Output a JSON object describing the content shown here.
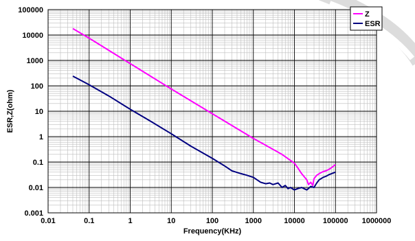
{
  "chart_data": {
    "type": "line",
    "title": "",
    "xlabel": "Frequency(KHz)",
    "ylabel": "ESR,Z(ohm)",
    "x_scale": "log",
    "y_scale": "log",
    "xlim": [
      0.01,
      1000000
    ],
    "ylim": [
      0.001,
      100000
    ],
    "grid": true,
    "legend_position": "top-right",
    "x_tick_labels": [
      "0.01",
      "0.1",
      "1",
      "10",
      "100",
      "1000",
      "10000",
      "100000",
      "1000000"
    ],
    "y_tick_labels": [
      "0.001",
      "0.01",
      "0.1",
      "1",
      "10",
      "100",
      "1000",
      "10000",
      "100000"
    ],
    "series": [
      {
        "name": "Z",
        "color": "#ff00ff",
        "x": [
          0.04,
          0.1,
          1,
          10,
          100,
          1000,
          5000,
          10000,
          12000,
          15000,
          20000,
          22000,
          25000,
          28000,
          30000,
          35000,
          40000,
          50000,
          60000,
          70000,
          80000,
          100000
        ],
        "y": [
          18000,
          7500,
          750,
          75,
          8,
          0.85,
          0.2,
          0.09,
          0.06,
          0.035,
          0.02,
          0.013,
          0.016,
          0.012,
          0.022,
          0.03,
          0.035,
          0.042,
          0.046,
          0.052,
          0.06,
          0.08
        ]
      },
      {
        "name": "ESR",
        "color": "#000080",
        "x": [
          0.04,
          0.1,
          0.3,
          1,
          3,
          10,
          30,
          100,
          200,
          300,
          500,
          700,
          1000,
          1500,
          2000,
          2500,
          3000,
          4000,
          5000,
          6000,
          7000,
          8000,
          10000,
          12000,
          15000,
          20000,
          25000,
          30000,
          35000,
          40000,
          50000,
          60000,
          70000,
          80000,
          100000
        ],
        "y": [
          240,
          110,
          40,
          12,
          4.2,
          1.3,
          0.42,
          0.14,
          0.07,
          0.045,
          0.035,
          0.03,
          0.025,
          0.016,
          0.014,
          0.015,
          0.013,
          0.015,
          0.01,
          0.012,
          0.009,
          0.01,
          0.008,
          0.009,
          0.01,
          0.008,
          0.011,
          0.01,
          0.015,
          0.02,
          0.025,
          0.028,
          0.032,
          0.035,
          0.04
        ]
      }
    ]
  }
}
